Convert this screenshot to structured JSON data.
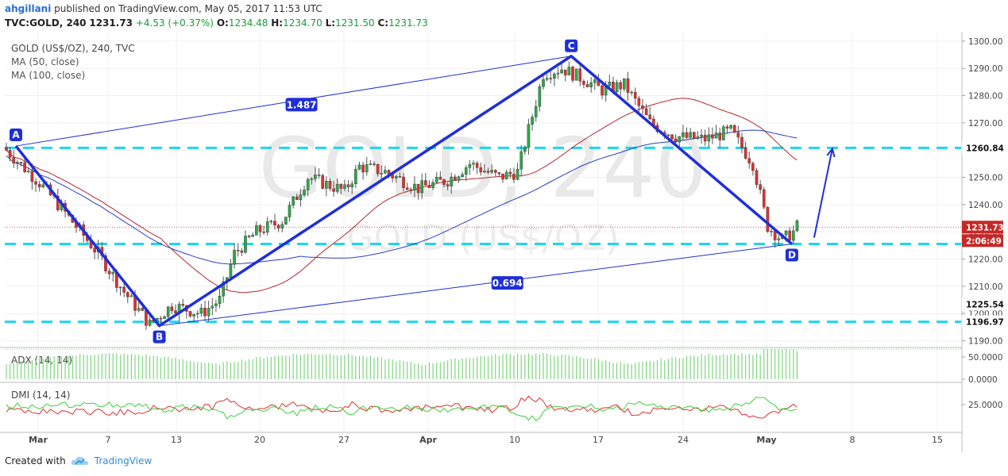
{
  "header": {
    "author": "ahgillani",
    "published_text": "published on TradingView.com, May 05, 2017 11:53 UTC",
    "symbol": "TVC:GOLD, 240",
    "price": "1231.73",
    "change": "+4.53 (+0.37%)",
    "o_label": "O:",
    "o_value": "1234.48",
    "h_label": "H:",
    "h_value": "1234.70",
    "l_label": "L:",
    "l_value": "1231.50",
    "c_label": "C:",
    "c_value": "1231.73"
  },
  "legend": {
    "title": "GOLD (US$/OZ), 240, TVC",
    "ma50": "MA (50, close)",
    "ma100": "MA (100, close)"
  },
  "watermark": {
    "line1": "GOLD, 240",
    "line2": "GOLD (US$/OZ)"
  },
  "price_axis": {
    "ticks": [
      1300,
      1290,
      1280,
      1270,
      1260,
      1250,
      1240,
      1230,
      1220,
      1210,
      1200,
      1190
    ],
    "tick_labels": [
      "1300.00",
      "1290.00",
      "1280.00",
      "1270.00",
      "1260.00",
      "1250.00",
      "1240.00",
      "1230.00",
      "1220.00",
      "1210.00",
      "1200.00",
      "1190.00"
    ],
    "ylim": [
      1189,
      1302
    ],
    "current_price": "1231.73",
    "countdown": "2:06:49",
    "level_labels": [
      "1260.84",
      "1225.54",
      "1196.97"
    ]
  },
  "time_axis": {
    "labels": [
      "Mar",
      "7",
      "13",
      "20",
      "27",
      "Apr",
      "10",
      "17",
      "24",
      "May",
      "8",
      "15"
    ],
    "bold": [
      true,
      false,
      false,
      false,
      false,
      true,
      false,
      false,
      false,
      true,
      false,
      false
    ]
  },
  "colors": {
    "candle_up": "#2ea84a",
    "candle_down": "#e0312c",
    "ma50": "#b5272c",
    "ma100": "#2b3fc7",
    "pattern": "#1f2fd8",
    "level": "#1bd7f0",
    "price_line": "#c62828"
  },
  "pattern": {
    "points": [
      {
        "label": "A",
        "x": 0.0,
        "y": 1261.5
      },
      {
        "label": "B",
        "x": 39.0,
        "y": 1195.5
      },
      {
        "label": "C",
        "x": 151.0,
        "y": 1294.5
      },
      {
        "label": "D",
        "x": 211.0,
        "y": 1225.54
      }
    ],
    "ratio_ac": "1.487",
    "ratio_bd": "0.694",
    "projection_to": {
      "x": 222.0,
      "y": 1260.84
    }
  },
  "adx_panel": {
    "label": "ADX (14, 14)",
    "ticks": [
      "50.0000",
      "0.0000"
    ]
  },
  "dmi_panel": {
    "label": "DMI (14, 14)",
    "ticks": [
      "25.0000"
    ]
  },
  "chart_data": {
    "type": "candlestick",
    "title": "GOLD (US$/OZ), 240, TVC",
    "x": "4-hour bars, late Feb – May 05, 2017",
    "ylim": [
      1189,
      1302
    ],
    "series": [
      {
        "name": "MA (50, close)"
      },
      {
        "name": "MA (100, close)"
      }
    ],
    "levels": [
      1260.84,
      1225.54,
      1196.97
    ],
    "last_price": 1231.73
  },
  "footer": {
    "created_with": "Created with",
    "brand": "TradingView"
  }
}
